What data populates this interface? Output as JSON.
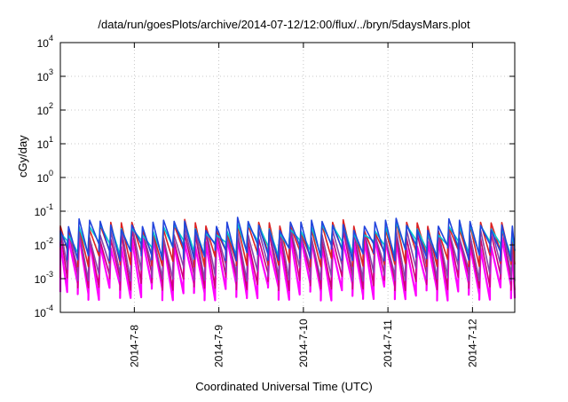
{
  "chart_data": {
    "type": "line",
    "title": "/data/run/goesPlots/archive/2014-07-12/12:00/flux/../bryn/5daysMars.plot",
    "xlabel": "Coordinated Universal Time (UTC)",
    "ylabel": "cGy/day",
    "y_scale": "log",
    "ylim": [
      0.0001,
      10000
    ],
    "y_ticks": [
      {
        "base": "10",
        "exp": "-4",
        "value": 0.0001
      },
      {
        "base": "10",
        "exp": "-3",
        "value": 0.001
      },
      {
        "base": "10",
        "exp": "-2",
        "value": 0.01
      },
      {
        "base": "10",
        "exp": "-1",
        "value": 0.1
      },
      {
        "base": "10",
        "exp": "0",
        "value": 1
      },
      {
        "base": "10",
        "exp": "1",
        "value": 10
      },
      {
        "base": "10",
        "exp": "2",
        "value": 100
      },
      {
        "base": "10",
        "exp": "3",
        "value": 1000
      },
      {
        "base": "10",
        "exp": "4",
        "value": 10000
      }
    ],
    "xlim": [
      "2014-07-07 03:00",
      "2014-07-12 12:00"
    ],
    "x_ticks": [
      "2014-7-8",
      "2014-7-9",
      "2014-7-10",
      "2014-7-11",
      "2014-7-12"
    ],
    "grid": true,
    "cycles_per_day": 8,
    "series": [
      {
        "color": "#ff00ff",
        "peak": 0.012,
        "trough": 0.0004
      },
      {
        "color": "#cc0077",
        "peak": 0.02,
        "trough": 0.0008
      },
      {
        "color": "#8844aa",
        "peak": 0.025,
        "trough": 0.0015
      },
      {
        "color": "#dd2222",
        "peak": 0.035,
        "trough": 0.004
      },
      {
        "color": "#00cccc",
        "peak": 0.03,
        "trough": 0.008
      },
      {
        "color": "#2244dd",
        "peak": 0.04,
        "trough": 0.006
      }
    ]
  }
}
